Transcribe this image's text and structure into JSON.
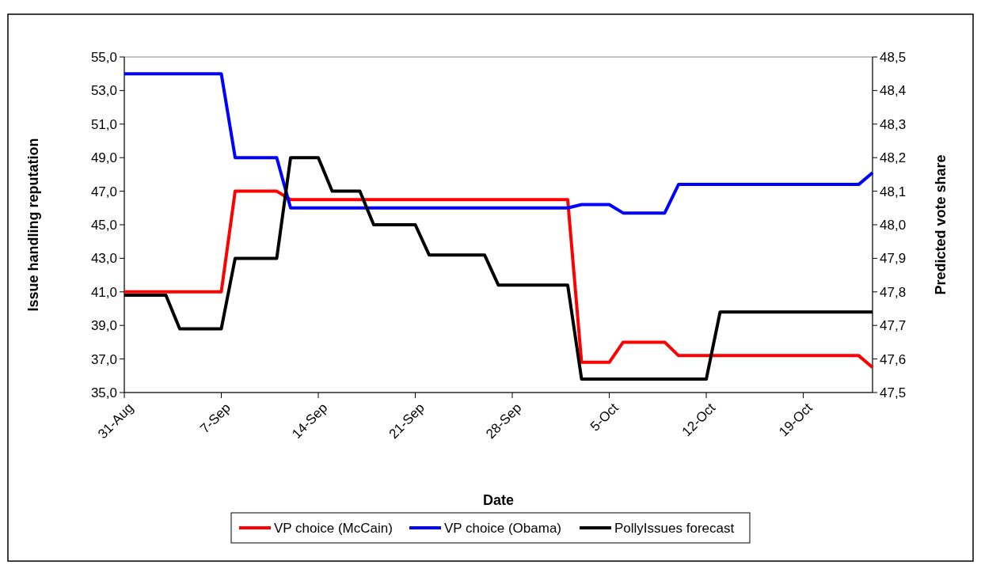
{
  "chart_data": {
    "type": "line",
    "xlabel": "Date",
    "ylabel": "Issue handling reputation",
    "y2label": "Predicted vote share",
    "xlim": [
      "--08-31",
      "--10-24"
    ],
    "xticks": [
      {
        "value": "--08-31",
        "label": "31-Aug"
      },
      {
        "value": "--09-07",
        "label": "7-Sep"
      },
      {
        "value": "--09-14",
        "label": "14-Sep"
      },
      {
        "value": "--09-21",
        "label": "21-Sep"
      },
      {
        "value": "--09-28",
        "label": "28-Sep"
      },
      {
        "value": "--10-05",
        "label": "5-Oct"
      },
      {
        "value": "--10-12",
        "label": "12-Oct"
      },
      {
        "value": "--10-19",
        "label": "19-Oct"
      }
    ],
    "ylim": [
      35,
      55
    ],
    "yticks": [
      {
        "value": 35,
        "label": "35,0"
      },
      {
        "value": 37,
        "label": "37,0"
      },
      {
        "value": 39,
        "label": "39,0"
      },
      {
        "value": 41,
        "label": "41,0"
      },
      {
        "value": 43,
        "label": "43,0"
      },
      {
        "value": 45,
        "label": "45,0"
      },
      {
        "value": 47,
        "label": "47,0"
      },
      {
        "value": 49,
        "label": "49,0"
      },
      {
        "value": 51,
        "label": "51,0"
      },
      {
        "value": 53,
        "label": "53,0"
      },
      {
        "value": 55,
        "label": "55,0"
      }
    ],
    "y2lim": [
      47.5,
      48.5
    ],
    "y2ticks": [
      {
        "value": 47.5,
        "label": "47,5"
      },
      {
        "value": 47.6,
        "label": "47,6"
      },
      {
        "value": 47.7,
        "label": "47,7"
      },
      {
        "value": 47.8,
        "label": "47,8"
      },
      {
        "value": 47.9,
        "label": "47,9"
      },
      {
        "value": 48.0,
        "label": "48,0"
      },
      {
        "value": 48.1,
        "label": "48,1"
      },
      {
        "value": 48.2,
        "label": "48,2"
      },
      {
        "value": 48.3,
        "label": "48,3"
      },
      {
        "value": 48.4,
        "label": "48,4"
      },
      {
        "value": 48.5,
        "label": "48,5"
      }
    ],
    "grid": false,
    "legend": "bottom",
    "marker": "none",
    "line_style": "solid",
    "series": [
      {
        "name": "VP choice (McCain)",
        "color": "#ff0000",
        "x": [
          "--08-31",
          "--09-07",
          "--09-08",
          "--09-11",
          "--09-12",
          "--10-02",
          "--10-03",
          "--10-05",
          "--10-06",
          "--10-09",
          "--10-10",
          "--10-23",
          "--10-24"
        ],
        "values": [
          41.0,
          41.0,
          47.0,
          47.0,
          46.5,
          46.5,
          36.8,
          36.8,
          38.0,
          38.0,
          37.2,
          37.2,
          36.5
        ]
      },
      {
        "name": "VP choice (Obama)",
        "color": "#0000ff",
        "x": [
          "--08-31",
          "--09-07",
          "--09-08",
          "--09-11",
          "--09-12",
          "--10-02",
          "--10-03",
          "--10-05",
          "--10-06",
          "--10-09",
          "--10-10",
          "--10-23",
          "--10-24"
        ],
        "values": [
          54.0,
          54.0,
          49.0,
          49.0,
          46.0,
          46.0,
          46.2,
          46.2,
          45.7,
          45.7,
          47.4,
          47.4,
          48.1
        ]
      },
      {
        "name": "PollyIssues forecast",
        "color": "#000000",
        "axis": "y2",
        "x": [
          "--08-31",
          "--09-03",
          "--09-04",
          "--09-07",
          "--09-08",
          "--09-11",
          "--09-12",
          "--09-14",
          "--09-15",
          "--09-17",
          "--09-18",
          "--09-21",
          "--09-22",
          "--09-26",
          "--09-27",
          "--10-02",
          "--10-03",
          "--10-12",
          "--10-13",
          "--10-24"
        ],
        "values": [
          47.79,
          47.79,
          47.69,
          47.69,
          47.9,
          47.9,
          48.2,
          48.2,
          48.1,
          48.1,
          48.0,
          48.0,
          47.91,
          47.91,
          47.82,
          47.82,
          47.54,
          47.54,
          47.74,
          47.74
        ]
      }
    ]
  }
}
